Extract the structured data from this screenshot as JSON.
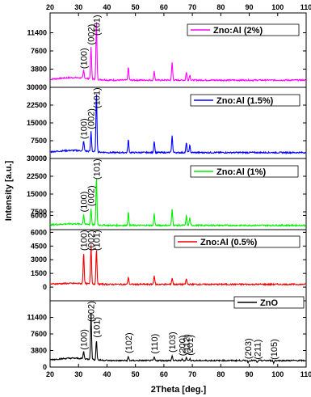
{
  "chart_data": {
    "type": "line",
    "xlabel": "2Theta [deg.]",
    "ylabel": "Intensity [a.u.]",
    "xlim": [
      20,
      110
    ],
    "x_ticks": [
      "20",
      "30",
      "40",
      "50",
      "60",
      "70",
      "80",
      "90",
      "100",
      "110"
    ],
    "grid": false,
    "legend_placement": "top-right of each panel",
    "panels": [
      {
        "name": "Zno:Al   (2%)",
        "color": "#ff00ff",
        "ylim": [
          0,
          15200
        ],
        "y_ticks": [
          3800,
          7600,
          11400
        ],
        "baseline": 1500,
        "peaks": [
          {
            "x": 31.8,
            "y": 3200,
            "label": "(100)"
          },
          {
            "x": 34.4,
            "y": 8200,
            "label": "(002)"
          },
          {
            "x": 36.3,
            "y": 13800,
            "label": "(101)"
          },
          {
            "x": 47.5,
            "y": 4200
          },
          {
            "x": 56.6,
            "y": 3400
          },
          {
            "x": 62.9,
            "y": 5200
          },
          {
            "x": 67.9,
            "y": 3200
          },
          {
            "x": 69.1,
            "y": 2600
          }
        ]
      },
      {
        "name": "Zno:Al  (1.5%)",
        "color": "#0000ff",
        "ylim": [
          0,
          30000
        ],
        "y_ticks": [
          0,
          7500,
          15000,
          22500,
          30000
        ],
        "baseline": 2500,
        "peaks": [
          {
            "x": 31.8,
            "y": 6800,
            "label": "(100)"
          },
          {
            "x": 34.4,
            "y": 11000,
            "label": "(002)"
          },
          {
            "x": 36.3,
            "y": 28000,
            "label": "(101)"
          },
          {
            "x": 47.5,
            "y": 8000
          },
          {
            "x": 56.6,
            "y": 7500
          },
          {
            "x": 62.9,
            "y": 9500
          },
          {
            "x": 67.9,
            "y": 6500
          },
          {
            "x": 69.1,
            "y": 5500
          }
        ]
      },
      {
        "name": "Zno:Al  (1%)",
        "color": "#00ee00",
        "ylim": [
          0,
          30000
        ],
        "y_ticks": [
          6000,
          7500,
          15000,
          22500,
          30000
        ],
        "baseline": 1800,
        "peaks": [
          {
            "x": 31.8,
            "y": 6000,
            "label": "(100)"
          },
          {
            "x": 34.4,
            "y": 8500,
            "label": "(002)"
          },
          {
            "x": 36.3,
            "y": 22000,
            "label": "(101)"
          },
          {
            "x": 47.5,
            "y": 7300
          },
          {
            "x": 56.6,
            "y": 6700
          },
          {
            "x": 62.9,
            "y": 8600
          },
          {
            "x": 67.9,
            "y": 5800
          },
          {
            "x": 69.1,
            "y": 5000
          }
        ]
      },
      {
        "name": "Zno:Al   (0.5%)",
        "color": "#ee0000",
        "ylim": [
          -1500,
          6300
        ],
        "y_ticks": [
          0,
          1500,
          3000,
          4500,
          6000
        ],
        "baseline": 300,
        "peaks": [
          {
            "x": 31.8,
            "y": 3700,
            "label": "(100)"
          },
          {
            "x": 34.4,
            "y": 4600,
            "label": "(002)"
          },
          {
            "x": 36.3,
            "y": 4200,
            "label": "(101)"
          },
          {
            "x": 47.5,
            "y": 1100
          },
          {
            "x": 56.6,
            "y": 1300
          },
          {
            "x": 62.9,
            "y": 1000
          },
          {
            "x": 67.9,
            "y": 900
          }
        ]
      },
      {
        "name": "ZnO",
        "color": "#000000",
        "ylim": [
          0,
          15200
        ],
        "y_ticks": [
          0,
          3800,
          7600,
          11400
        ],
        "baseline": 1500,
        "peaks": [
          {
            "x": 31.8,
            "y": 3200,
            "label": "(100)"
          },
          {
            "x": 34.4,
            "y": 12000,
            "label": "(002)"
          },
          {
            "x": 36.3,
            "y": 6000,
            "label": "(101)"
          },
          {
            "x": 47.5,
            "y": 2400,
            "label": "(102)"
          },
          {
            "x": 56.6,
            "y": 2300,
            "label": "(110)"
          },
          {
            "x": 62.9,
            "y": 2600,
            "label": "(103)"
          },
          {
            "x": 66.4,
            "y": 1800,
            "label": "(200)"
          },
          {
            "x": 67.9,
            "y": 2200,
            "label": "(112)"
          },
          {
            "x": 69.1,
            "y": 1900,
            "label": "(201)"
          },
          {
            "x": 89.6,
            "y": 1100,
            "label": "(203)"
          },
          {
            "x": 92.8,
            "y": 1000,
            "label": "(211)"
          },
          {
            "x": 98.6,
            "y": 950,
            "label": "(105)"
          }
        ]
      }
    ]
  }
}
